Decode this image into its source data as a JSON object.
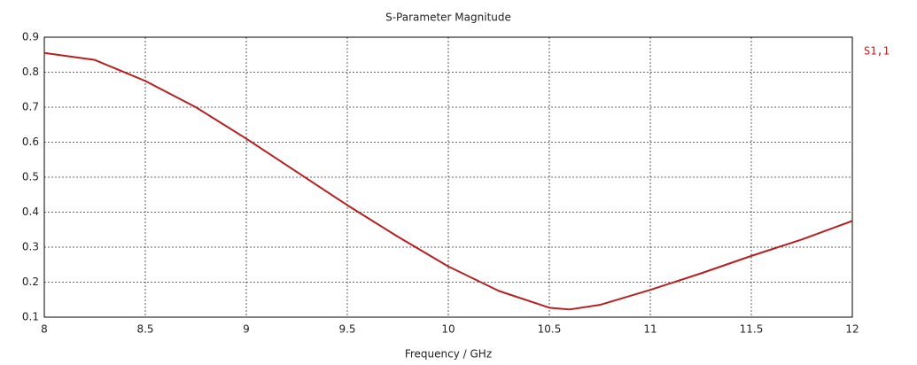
{
  "chart_data": {
    "type": "line",
    "title": "S-Parameter Magnitude",
    "x_label": "Frequency / GHz",
    "x": [
      8,
      8.25,
      8.5,
      8.75,
      9,
      9.25,
      9.5,
      9.75,
      10,
      10.25,
      10.5,
      10.6,
      10.75,
      11,
      11.25,
      11.5,
      11.75,
      12
    ],
    "series": [
      {
        "name": "S1,1",
        "color": "#b52020",
        "values": [
          0.855,
          0.835,
          0.775,
          0.7,
          0.61,
          0.515,
          0.42,
          0.33,
          0.245,
          0.175,
          0.127,
          0.122,
          0.135,
          0.178,
          0.225,
          0.275,
          0.322,
          0.375
        ]
      }
    ],
    "xlim": [
      8,
      12
    ],
    "xticks": [
      8,
      8.5,
      9,
      9.5,
      10,
      10.5,
      11,
      11.5,
      12
    ],
    "ylim": [
      0.1,
      0.9
    ],
    "yticks": [
      0.1,
      0.2,
      0.3,
      0.4,
      0.5,
      0.6,
      0.7,
      0.8,
      0.9
    ],
    "grid": true,
    "legend": "right"
  }
}
